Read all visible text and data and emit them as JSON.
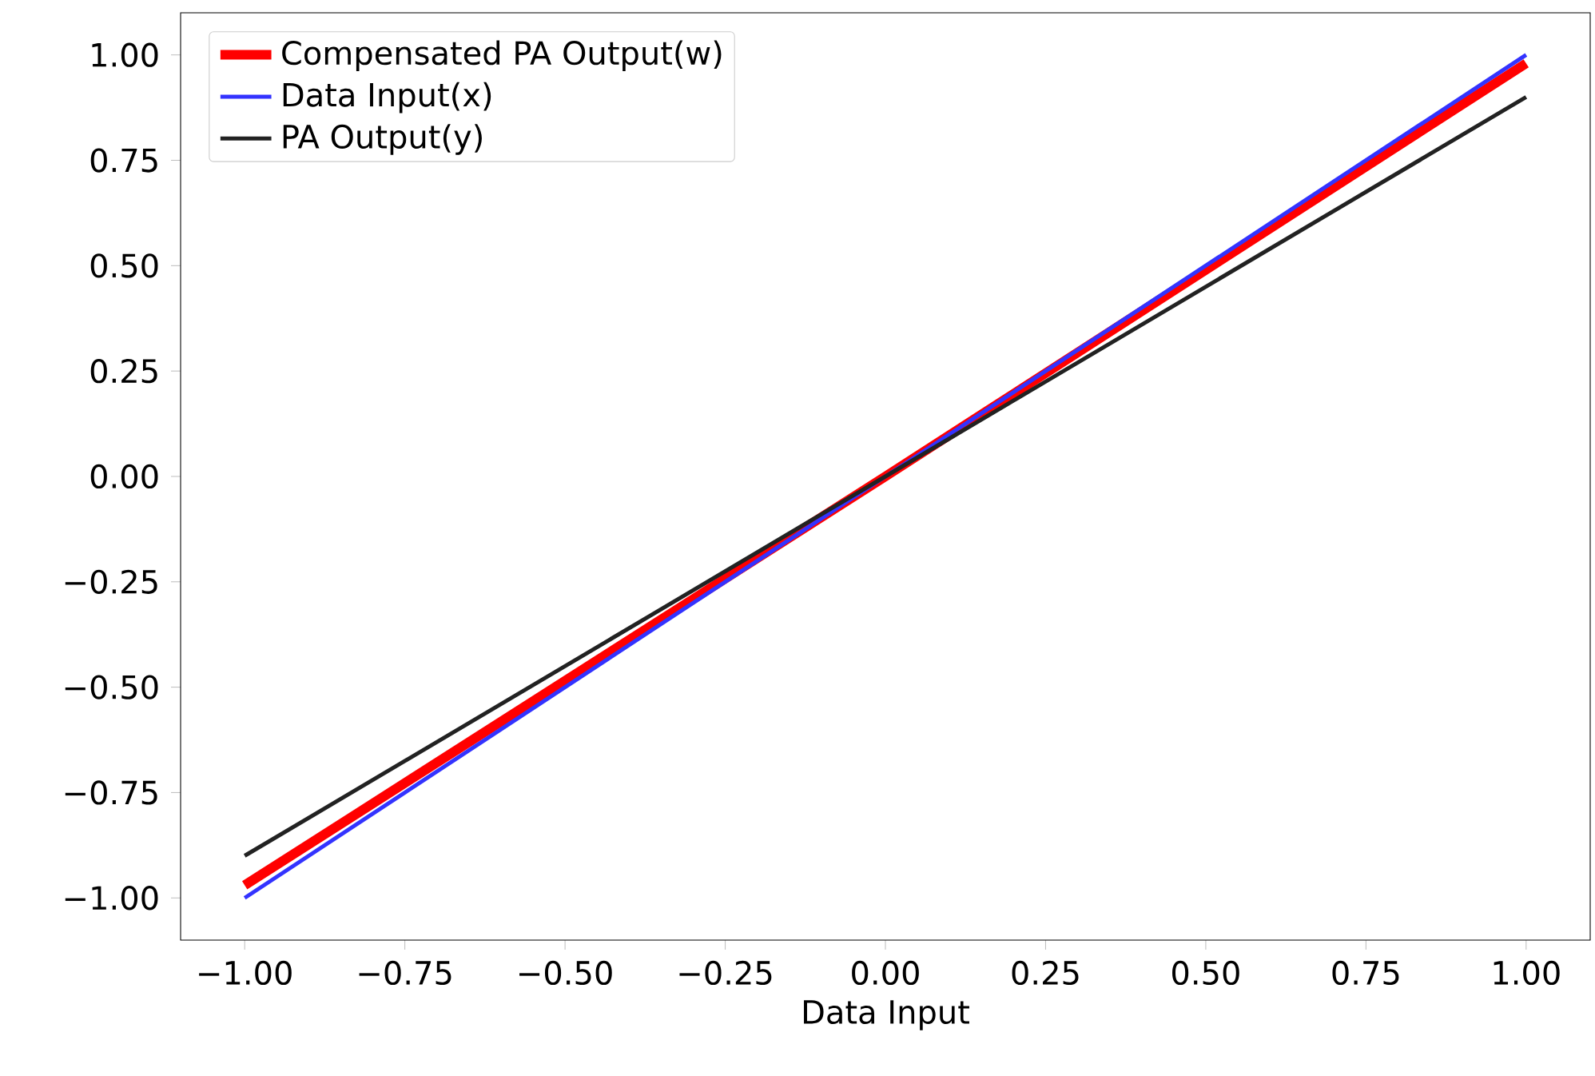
{
  "chart_data": {
    "type": "line",
    "xlabel": "Data Input",
    "x": [
      -1,
      0,
      1
    ],
    "series": [
      {
        "name": "Compensated PA Output(w)",
        "color": "#ff0000",
        "values": [
          -0.97,
          0,
          0.98
        ]
      },
      {
        "name": "Data Input(x)",
        "color": "#3333ff",
        "values": [
          -1,
          0,
          1
        ]
      },
      {
        "name": "PA Output(y)",
        "color": "#222222",
        "values": [
          -0.9,
          0,
          0.9
        ]
      }
    ],
    "xlim": [
      -1.1,
      1.1
    ],
    "ylim": [
      -1.1,
      1.1
    ],
    "xticks": [
      {
        "value": -1,
        "label": "−1.00"
      },
      {
        "value": -0.75,
        "label": "−0.75"
      },
      {
        "value": -0.5,
        "label": "−0.50"
      },
      {
        "value": -0.25,
        "label": "−0.25"
      },
      {
        "value": 0,
        "label": "0.00"
      },
      {
        "value": 0.25,
        "label": "0.25"
      },
      {
        "value": 0.5,
        "label": "0.50"
      },
      {
        "value": 0.75,
        "label": "0.75"
      },
      {
        "value": 1,
        "label": "1.00"
      }
    ],
    "yticks": [
      {
        "value": -1,
        "label": "−1.00"
      },
      {
        "value": -0.75,
        "label": "−0.75"
      },
      {
        "value": -0.5,
        "label": "−0.50"
      },
      {
        "value": -0.25,
        "label": "−0.25"
      },
      {
        "value": 0,
        "label": "0.00"
      },
      {
        "value": 0.25,
        "label": "0.25"
      },
      {
        "value": 0.5,
        "label": "0.50"
      },
      {
        "value": 0.75,
        "label": "0.75"
      },
      {
        "value": 1,
        "label": "1.00"
      }
    ],
    "legend": "top left"
  }
}
